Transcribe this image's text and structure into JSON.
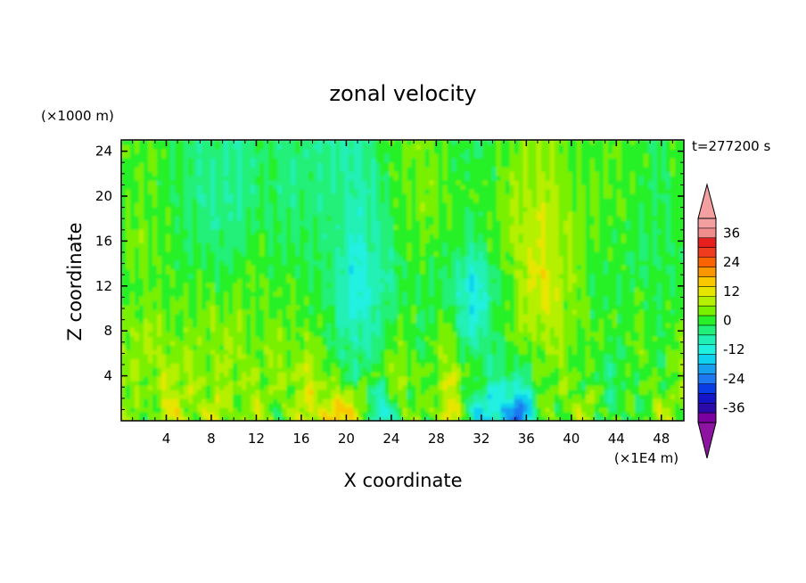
{
  "chart_data": {
    "type": "heatmap",
    "title": "zonal velocity",
    "xlabel": "X coordinate",
    "ylabel": "Z coordinate",
    "x_unit": "(×1E4 m)",
    "y_unit": "(×1000 m)",
    "time_label": "t=277200 s",
    "xlim": [
      0,
      50
    ],
    "ylim": [
      0,
      25
    ],
    "x_ticks": [
      "4",
      "8",
      "12",
      "16",
      "20",
      "24",
      "28",
      "32",
      "36",
      "40",
      "44",
      "48"
    ],
    "y_ticks": [
      "4",
      "8",
      "12",
      "16",
      "20",
      "24"
    ],
    "colorbar": {
      "range": [
        -42,
        42
      ],
      "step": 4,
      "tick_labels": [
        "36",
        "24",
        "12",
        "0",
        "-12",
        "-24",
        "-36"
      ],
      "tick_values": [
        36,
        24,
        12,
        0,
        -12,
        -24,
        -36
      ],
      "colors": [
        "#7a00a0",
        "#2a0aa8",
        "#1414c8",
        "#0a3ce6",
        "#1e78f0",
        "#18a0f0",
        "#10d2f0",
        "#20f0e0",
        "#20f0b4",
        "#20f078",
        "#28f028",
        "#78f000",
        "#b4f000",
        "#e6e600",
        "#fac800",
        "#fa9600",
        "#fa6400",
        "#f03c1e",
        "#e61e1e",
        "#f08c8c",
        "#f5a0a0"
      ],
      "under_color": "#8c14a0",
      "over_color": "#f5a0a0"
    },
    "field_description_rows": [
      {
        "z": 24,
        "values": [
          0,
          2,
          0,
          -4,
          -4,
          -6,
          -2,
          -4,
          -4,
          -6,
          -8,
          -2,
          2,
          4,
          0,
          -2,
          0,
          4,
          6,
          2,
          0,
          2,
          0,
          -2,
          2
        ]
      },
      {
        "z": 20,
        "values": [
          0,
          2,
          0,
          -4,
          -6,
          -6,
          -2,
          -4,
          -4,
          -4,
          -8,
          -4,
          2,
          4,
          2,
          0,
          2,
          6,
          8,
          4,
          2,
          2,
          0,
          -2,
          0
        ]
      },
      {
        "z": 16,
        "values": [
          2,
          4,
          0,
          -2,
          -4,
          -4,
          0,
          -2,
          -2,
          -4,
          -10,
          -6,
          0,
          2,
          0,
          -4,
          2,
          8,
          10,
          6,
          2,
          0,
          -2,
          -2,
          0
        ]
      },
      {
        "z": 12,
        "values": [
          0,
          2,
          0,
          2,
          0,
          2,
          2,
          0,
          0,
          -4,
          -14,
          -8,
          -2,
          0,
          -4,
          -14,
          -4,
          6,
          12,
          6,
          0,
          -2,
          0,
          -2,
          0
        ]
      },
      {
        "z": 8,
        "values": [
          4,
          6,
          4,
          2,
          6,
          4,
          2,
          4,
          2,
          -2,
          -10,
          -4,
          2,
          -2,
          4,
          -12,
          0,
          4,
          8,
          4,
          2,
          0,
          2,
          0,
          2
        ]
      },
      {
        "z": 4,
        "values": [
          6,
          4,
          8,
          6,
          4,
          6,
          4,
          6,
          8,
          2,
          -4,
          2,
          6,
          0,
          8,
          2,
          -6,
          -4,
          2,
          4,
          0,
          -4,
          2,
          0,
          4
        ]
      },
      {
        "z": 1,
        "values": [
          4,
          2,
          10,
          6,
          8,
          4,
          6,
          2,
          10,
          12,
          14,
          -16,
          4,
          0,
          14,
          -10,
          -14,
          -24,
          2,
          4,
          6,
          -2,
          0,
          6,
          4
        ]
      }
    ]
  }
}
